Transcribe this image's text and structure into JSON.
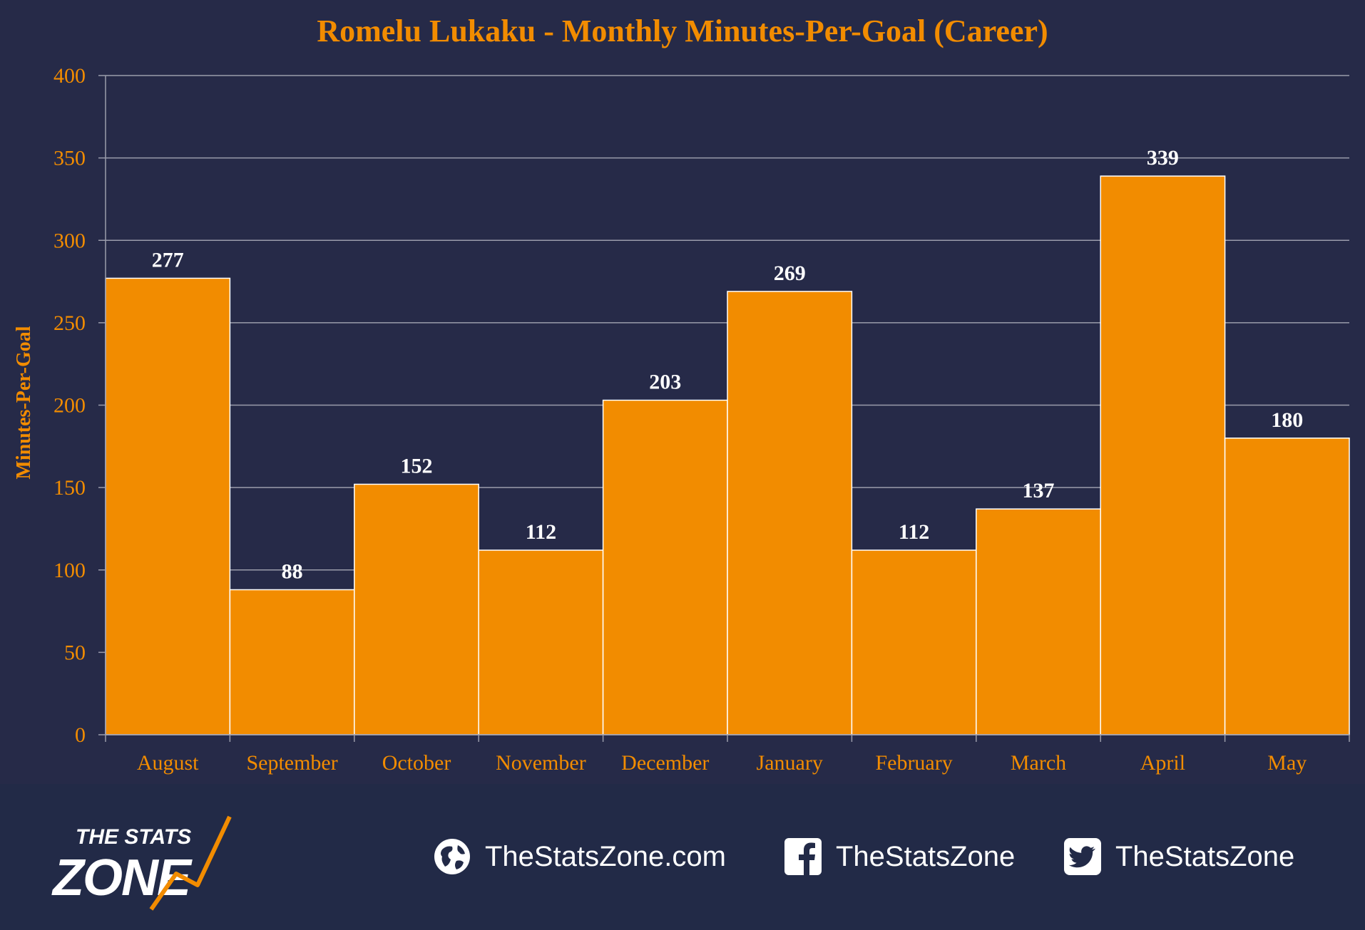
{
  "chart_data": {
    "type": "bar",
    "title": "Romelu Lukaku - Monthly Minutes-Per-Goal (Career)",
    "ylabel": "Minutes-Per-Goal",
    "xlabel": "",
    "categories": [
      "August",
      "September",
      "October",
      "November",
      "December",
      "January",
      "February",
      "March",
      "April",
      "May"
    ],
    "values": [
      277,
      88,
      152,
      112,
      203,
      269,
      112,
      137,
      339,
      180
    ],
    "ylim": [
      0,
      400
    ],
    "yticks": [
      "0",
      "50",
      "100",
      "150",
      "200",
      "250",
      "300",
      "350",
      "400"
    ],
    "grid": true,
    "data_labels": true,
    "legend": "none"
  },
  "colors": {
    "background": "#262a48",
    "footer": "#222a47",
    "bar": "#f28c00",
    "bar_edge": "#ffffff",
    "accent_text": "#f28c00",
    "data_label": "#ffffff",
    "grid": "#9a9cab"
  },
  "footer": {
    "logo_line1": "THE STATS",
    "logo_line2": "ZONE",
    "website": {
      "icon": "globe-icon",
      "text": "TheStatsZone.com"
    },
    "facebook": {
      "icon": "facebook-icon",
      "text": "TheStatsZone"
    },
    "twitter": {
      "icon": "twitter-icon",
      "text": "TheStatsZone"
    }
  }
}
